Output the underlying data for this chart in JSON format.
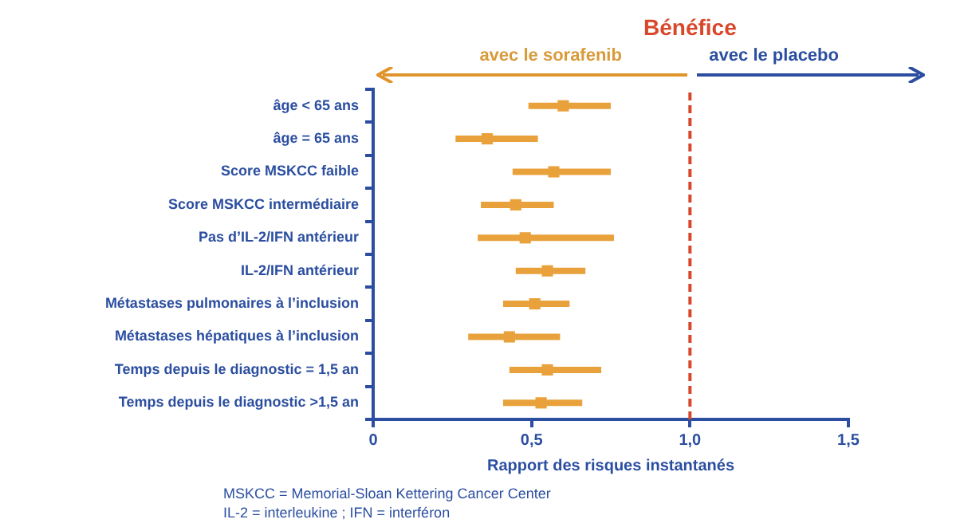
{
  "chart_data": {
    "type": "scatter",
    "orientation": "horizontal",
    "marker": "square",
    "title": "Bénéfice",
    "xlabel": "Rapport des risques instantanés",
    "categories": [
      "âge < 65 ans",
      "âge = 65 ans",
      "Score MSKCC faible",
      "Score MSKCC intermédiaire",
      "Pas d’IL-2/IFN antérieur",
      "IL-2/IFN antérieur",
      "Métastases pulmonaires à l’inclusion",
      "Métastases hépatiques à l’inclusion",
      "Temps depuis le diagnostic = 1,5 an",
      "Temps depuis le diagnostic >1,5 an"
    ],
    "series": [
      {
        "color": "#e9a23b",
        "values": [
          0.6,
          0.36,
          0.57,
          0.45,
          0.48,
          0.55,
          0.51,
          0.43,
          0.55,
          0.53
        ],
        "errors": [
          [
            0.49,
            0.75
          ],
          [
            0.26,
            0.52
          ],
          [
            0.44,
            0.75
          ],
          [
            0.34,
            0.57
          ],
          [
            0.33,
            0.76
          ],
          [
            0.45,
            0.67
          ],
          [
            0.41,
            0.62
          ],
          [
            0.3,
            0.59
          ],
          [
            0.43,
            0.72
          ],
          [
            0.41,
            0.66
          ]
        ]
      }
    ],
    "xlim": [
      0,
      1.5
    ],
    "xticks": [
      0,
      {
        "value": 0.5,
        "label": "0,5"
      },
      {
        "value": 1.0,
        "label": "1,0"
      },
      {
        "value": 1.5,
        "label": "1,5"
      }
    ],
    "ref_lines": [
      {
        "axis": "x",
        "value": 1.0,
        "color": "#d9472b",
        "line_style": "dashed"
      }
    ],
    "annotations": [
      "avec le sorafenib",
      "avec le placebo",
      "MSKCC = Memorial-Sloan Kettering Cancer Center",
      "IL-2 = interleukine ; IFN = interféron"
    ],
    "grid": false,
    "legend": false
  }
}
